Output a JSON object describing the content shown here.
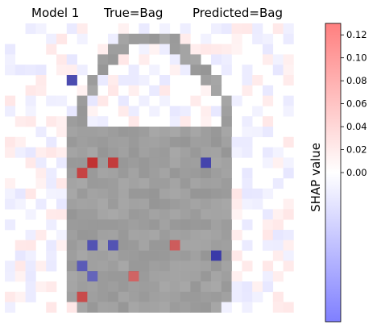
{
  "header": {
    "model": "Model 1",
    "true_label": "True=Bag",
    "predicted_label": "Predicted=Bag"
  },
  "chart_data": {
    "type": "heatmap",
    "image_size": [
      28,
      28
    ],
    "description_source": "SHAP explanation overlay on 28x28 grayscale Fashion-MNIST image",
    "colorbar": {
      "label": "SHAP value",
      "ticks": [
        0.0,
        0.02,
        0.04,
        0.06,
        0.08,
        0.1,
        0.12
      ],
      "tick_labels": [
        "0.00",
        "0.02",
        "0.04",
        "0.06",
        "0.08",
        "0.10",
        "0.12"
      ],
      "vmin": -0.13,
      "vmax": 0.13,
      "colormap": [
        "#7f7fff",
        "#ffffff",
        "#ff7f7f"
      ]
    },
    "colors": {
      "bag_gray": "#9a9a9a",
      "negative": "#3a3aa8",
      "positive": "#c03030"
    },
    "underlying_image": "grayscale bag silhouette with handle loop",
    "strong_positive_pixels": [
      [
        13,
        8,
        0.11
      ],
      [
        13,
        10,
        0.1
      ],
      [
        14,
        7,
        0.09
      ],
      [
        26,
        7,
        0.08
      ],
      [
        21,
        16,
        0.06
      ],
      [
        24,
        12,
        0.05
      ]
    ],
    "strong_negative_pixels": [
      [
        22,
        20,
        -0.12
      ],
      [
        13,
        19,
        -0.1
      ],
      [
        5,
        6,
        -0.09
      ],
      [
        21,
        8,
        -0.08
      ],
      [
        21,
        10,
        -0.08
      ],
      [
        23,
        7,
        -0.07
      ],
      [
        24,
        8,
        -0.06
      ]
    ]
  }
}
